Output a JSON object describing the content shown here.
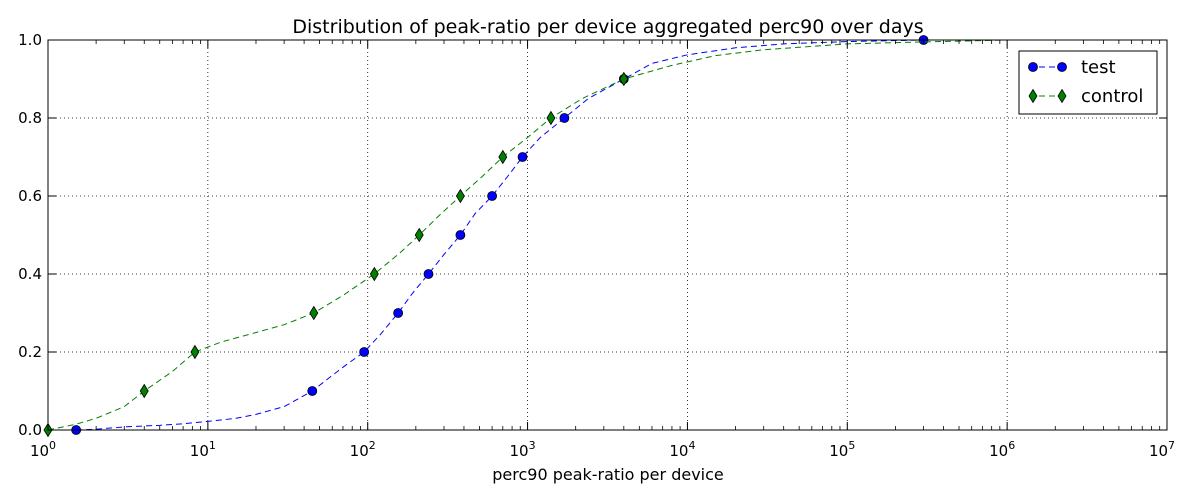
{
  "chart_data": {
    "type": "line",
    "title": "Distribution of peak-ratio per device aggregated perc90 over days",
    "xlabel": "perc90 peak-ratio per device",
    "ylabel": "",
    "xscale": "log",
    "xlim": [
      1,
      10000000
    ],
    "ylim": [
      0,
      1.0
    ],
    "grid": true,
    "legend_position": "top-right",
    "x_ticks": [
      {
        "base": "10",
        "exp": "0"
      },
      {
        "base": "10",
        "exp": "1"
      },
      {
        "base": "10",
        "exp": "2"
      },
      {
        "base": "10",
        "exp": "3"
      },
      {
        "base": "10",
        "exp": "4"
      },
      {
        "base": "10",
        "exp": "5"
      },
      {
        "base": "10",
        "exp": "6"
      },
      {
        "base": "10",
        "exp": "7"
      }
    ],
    "y_ticks": [
      "0.0",
      "0.2",
      "0.4",
      "0.6",
      "0.8",
      "1.0"
    ],
    "series": [
      {
        "name": "test",
        "color": "#0000ff",
        "marker": "circle",
        "line_style": "dashed",
        "curve": [
          [
            1.5,
            0.0
          ],
          [
            2,
            0.002
          ],
          [
            3,
            0.008
          ],
          [
            5,
            0.012
          ],
          [
            7,
            0.016
          ],
          [
            10,
            0.022
          ],
          [
            15,
            0.03
          ],
          [
            20,
            0.04
          ],
          [
            30,
            0.06
          ],
          [
            45,
            0.1
          ],
          [
            60,
            0.14
          ],
          [
            75,
            0.17
          ],
          [
            95,
            0.2
          ],
          [
            120,
            0.245
          ],
          [
            155,
            0.3
          ],
          [
            190,
            0.35
          ],
          [
            240,
            0.4
          ],
          [
            300,
            0.45
          ],
          [
            380,
            0.5
          ],
          [
            470,
            0.555
          ],
          [
            600,
            0.6
          ],
          [
            750,
            0.65
          ],
          [
            930,
            0.7
          ],
          [
            1200,
            0.75
          ],
          [
            1700,
            0.8
          ],
          [
            2400,
            0.85
          ],
          [
            4000,
            0.9
          ],
          [
            6000,
            0.94
          ],
          [
            10000,
            0.962
          ],
          [
            20000,
            0.98
          ],
          [
            40000,
            0.99
          ],
          [
            100000,
            0.996
          ],
          [
            300000,
            1.0
          ]
        ],
        "markers": [
          [
            1.5,
            0.0
          ],
          [
            45,
            0.1
          ],
          [
            95,
            0.2
          ],
          [
            155,
            0.3
          ],
          [
            240,
            0.4
          ],
          [
            380,
            0.5
          ],
          [
            600,
            0.6
          ],
          [
            930,
            0.7
          ],
          [
            1700,
            0.8
          ],
          [
            4000,
            0.9
          ],
          [
            300000,
            1.0
          ]
        ]
      },
      {
        "name": "control",
        "color": "#008000",
        "marker": "thin_diamond",
        "line_style": "dashed",
        "curve": [
          [
            1,
            0.0
          ],
          [
            1.5,
            0.015
          ],
          [
            2,
            0.03
          ],
          [
            3,
            0.06
          ],
          [
            4,
            0.1
          ],
          [
            6,
            0.15
          ],
          [
            8.3,
            0.2
          ],
          [
            12,
            0.225
          ],
          [
            20,
            0.25
          ],
          [
            30,
            0.27
          ],
          [
            46,
            0.3
          ],
          [
            70,
            0.345
          ],
          [
            110,
            0.4
          ],
          [
            160,
            0.455
          ],
          [
            210,
            0.5
          ],
          [
            280,
            0.55
          ],
          [
            380,
            0.6
          ],
          [
            520,
            0.65
          ],
          [
            700,
            0.7
          ],
          [
            1000,
            0.75
          ],
          [
            1400,
            0.8
          ],
          [
            2200,
            0.85
          ],
          [
            4000,
            0.9
          ],
          [
            8000,
            0.935
          ],
          [
            15000,
            0.96
          ],
          [
            30000,
            0.975
          ],
          [
            100000,
            0.99
          ],
          [
            300000,
            0.995
          ],
          [
            1000000,
            1.0
          ]
        ],
        "markers": [
          [
            1,
            0.0
          ],
          [
            4,
            0.1
          ],
          [
            8.3,
            0.2
          ],
          [
            46,
            0.3
          ],
          [
            110,
            0.4
          ],
          [
            210,
            0.5
          ],
          [
            380,
            0.6
          ],
          [
            700,
            0.7
          ],
          [
            1400,
            0.8
          ],
          [
            4000,
            0.9
          ]
        ]
      }
    ]
  }
}
